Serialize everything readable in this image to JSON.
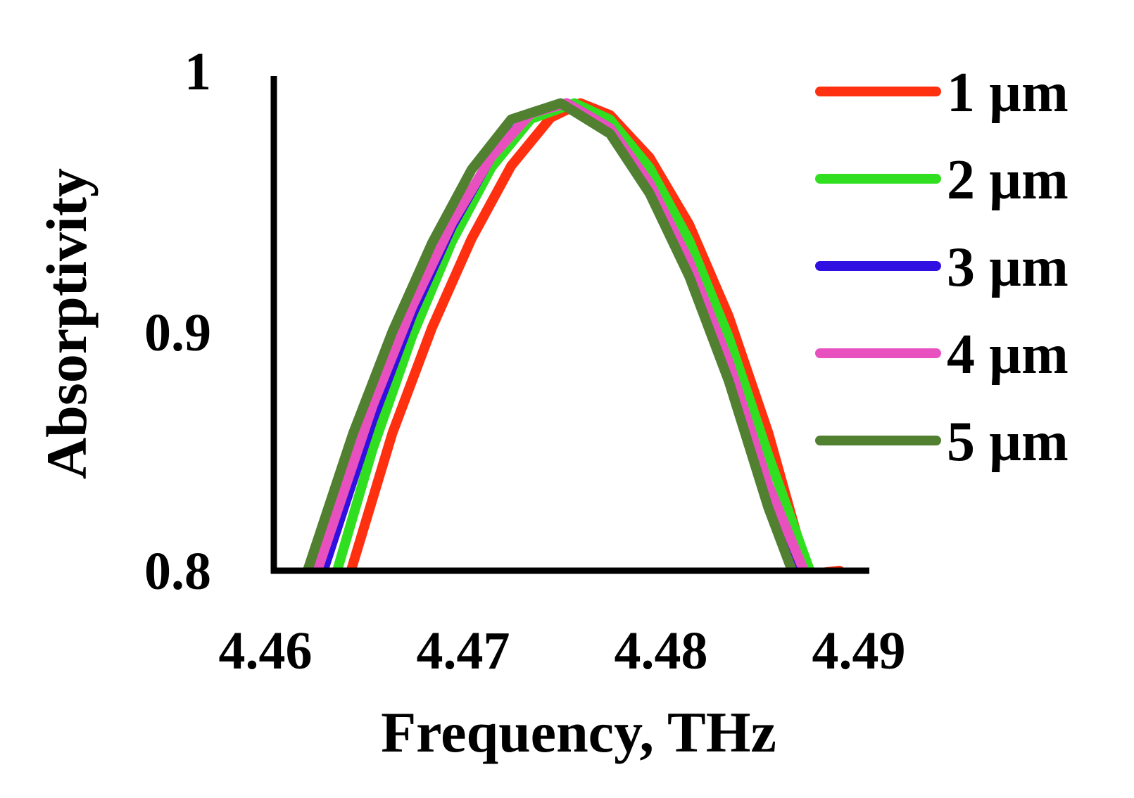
{
  "chart_data": {
    "type": "line",
    "title": "",
    "xlabel": "Frequency, THz",
    "ylabel": "Absorptivity",
    "xlim": [
      4.46,
      4.49
    ],
    "ylim": [
      0.8,
      1.0
    ],
    "xticks": [
      4.46,
      4.47,
      4.48,
      4.49
    ],
    "xtick_labels": [
      "4.46",
      "4.47",
      "4.48",
      "4.49"
    ],
    "yticks": [
      0.8,
      0.9,
      1.0
    ],
    "ytick_labels": [
      "0.8",
      "0.9",
      "1"
    ],
    "grid": false,
    "legend_position": "right",
    "series": [
      {
        "name": "1 µm",
        "color": "#ff3010",
        "x": [
          4.4639,
          4.466,
          4.468,
          4.47,
          4.472,
          4.474,
          4.4755,
          4.477,
          4.479,
          4.481,
          4.483,
          4.485,
          4.487,
          4.4886
        ],
        "y": [
          0.8,
          0.8578,
          0.9019,
          0.9392,
          0.9697,
          0.9899,
          0.996,
          0.991,
          0.9732,
          0.9451,
          0.9066,
          0.8578,
          0.7985,
          0.8
        ]
      },
      {
        "name": "2 µm",
        "color": "#30e020",
        "x": [
          4.4632,
          4.465,
          4.467,
          4.469,
          4.471,
          4.473,
          4.4752,
          4.477,
          4.479,
          4.481,
          4.483,
          4.485,
          4.4871
        ],
        "y": [
          0.8,
          0.8511,
          0.8985,
          0.9379,
          0.9691,
          0.9894,
          0.996,
          0.9891,
          0.9689,
          0.9384,
          0.8979,
          0.8484,
          0.8
        ]
      },
      {
        "name": "3 µm",
        "color": "#3010e0",
        "x": [
          4.4625,
          4.465,
          4.467,
          4.469,
          4.471,
          4.473,
          4.4748,
          4.477,
          4.479,
          4.481,
          4.483,
          4.4855,
          4.4866
        ],
        "y": [
          0.8,
          0.8634,
          0.9075,
          0.9443,
          0.9737,
          0.9919,
          0.996,
          0.9855,
          0.9621,
          0.9286,
          0.8855,
          0.8172,
          0.8
        ]
      },
      {
        "name": "4 µm",
        "color": "#e850c0",
        "x": [
          4.4622,
          4.465,
          4.467,
          4.469,
          4.471,
          4.473,
          4.4748,
          4.477,
          4.479,
          4.481,
          4.483,
          4.485,
          4.4868
        ],
        "y": [
          0.8,
          0.8693,
          0.9108,
          0.9457,
          0.9735,
          0.9917,
          0.996,
          0.9855,
          0.9624,
          0.9296,
          0.8875,
          0.836,
          0.8
        ]
      },
      {
        "name": "5 µm",
        "color": "#508030",
        "x": [
          4.4617,
          4.464,
          4.466,
          4.468,
          4.47,
          4.472,
          4.4745,
          4.477,
          4.479,
          4.481,
          4.483,
          4.485,
          4.4862
        ],
        "y": [
          0.8,
          0.8574,
          0.9003,
          0.9374,
          0.9682,
          0.9892,
          0.996,
          0.9832,
          0.9581,
          0.9234,
          0.8795,
          0.8264,
          0.8
        ]
      }
    ]
  }
}
